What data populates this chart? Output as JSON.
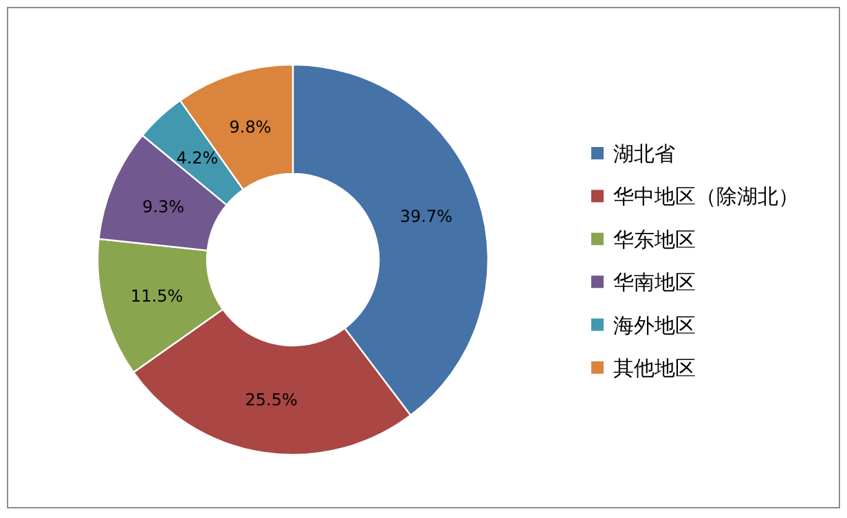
{
  "chart_data": {
    "type": "donut",
    "categories": [
      "湖北省",
      "华中地区（除湖北）",
      "华东地区",
      "华南地区",
      "海外地区",
      "其他地区"
    ],
    "values": [
      39.7,
      25.5,
      11.5,
      9.3,
      4.2,
      9.8
    ],
    "colors": [
      "#4572a7",
      "#aa4643",
      "#89a54e",
      "#71588f",
      "#4198af",
      "#db843d"
    ],
    "value_labels": [
      "39.7%",
      "25.5%",
      "11.5%",
      "9.3%",
      "4.2%",
      "9.8%"
    ],
    "legend": "right"
  }
}
